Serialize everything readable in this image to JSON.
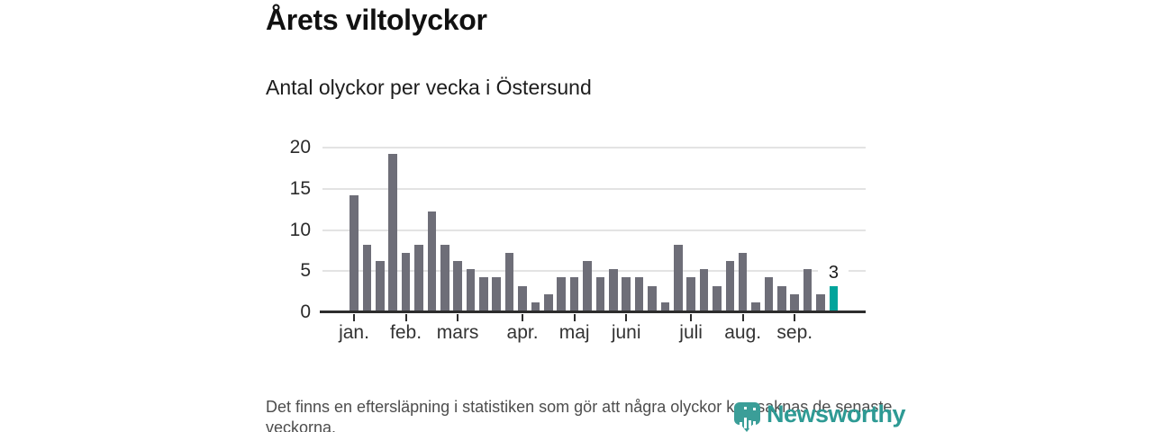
{
  "header": {
    "title": "Årets viltolyckor",
    "subtitle": "Antal olyckor per vecka i Östersund"
  },
  "chart_data": {
    "type": "bar",
    "title": "Årets viltolyckor",
    "subtitle": "Antal olyckor per vecka i Östersund",
    "ylabel": "",
    "xlabel": "",
    "ylim": [
      0,
      20
    ],
    "y_ticks": [
      0,
      5,
      10,
      15,
      20
    ],
    "grid": true,
    "values": [
      14,
      8,
      6,
      19,
      7,
      8,
      12,
      8,
      6,
      5,
      4,
      4,
      7,
      3,
      1,
      2,
      4,
      4,
      6,
      4,
      5,
      4,
      4,
      3,
      1,
      8,
      4,
      5,
      3,
      6,
      7,
      1,
      4,
      3,
      2,
      5,
      2,
      3
    ],
    "month_ticks": [
      {
        "label": "jan.",
        "index": 0
      },
      {
        "label": "feb.",
        "index": 4
      },
      {
        "label": "mars",
        "index": 8
      },
      {
        "label": "apr.",
        "index": 13
      },
      {
        "label": "maj",
        "index": 17
      },
      {
        "label": "juni",
        "index": 21
      },
      {
        "label": "juli",
        "index": 26
      },
      {
        "label": "aug.",
        "index": 30
      },
      {
        "label": "sep.",
        "index": 34
      }
    ],
    "highlight_index": 37,
    "highlight_label": "3",
    "colors": {
      "bar": "#6e6e78",
      "highlight": "#00a49b",
      "grid": "#e3e3e3",
      "axis": "#2d2d2d"
    }
  },
  "footer": {
    "note": "Det finns en eftersläpning i statistiken som gör att några olyckor kan saknas de senaste veckorna."
  },
  "logo": {
    "name": "Newsworthy",
    "color": "#2e9a94"
  }
}
